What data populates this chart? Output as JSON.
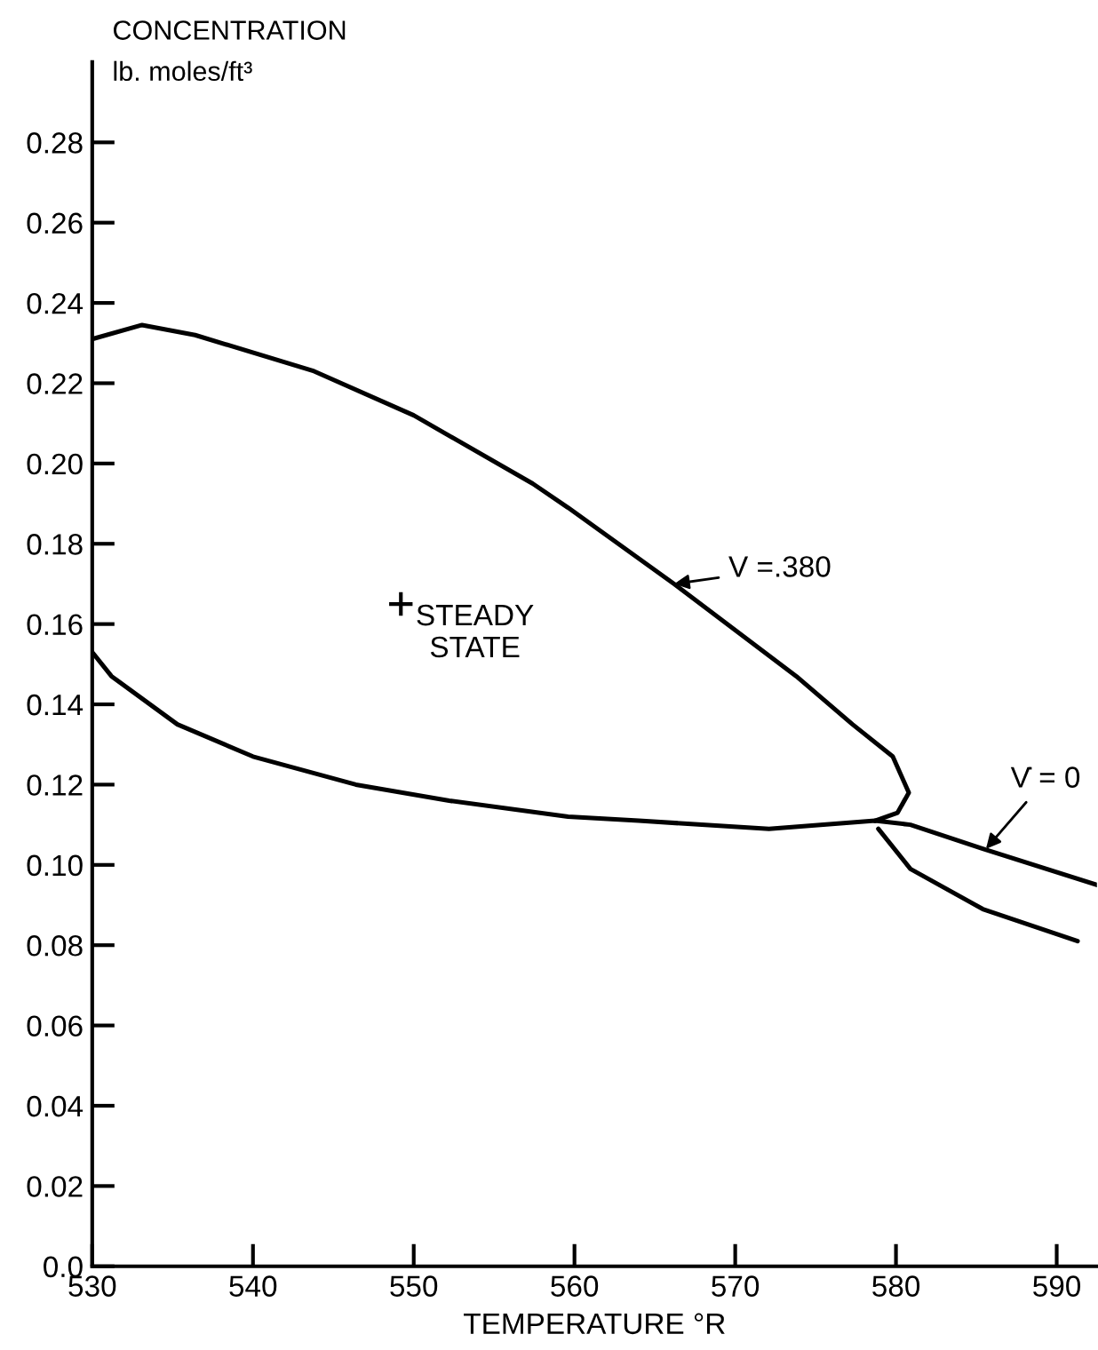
{
  "chart_data": {
    "type": "line",
    "xlabel": "TEMPERATURE °R",
    "ylabel": "CONCENTRATION\nlb. moles/ft³",
    "xlim": [
      530,
      592.5
    ],
    "ylim": [
      0,
      0.3
    ],
    "xticks": [
      530,
      540,
      550,
      560,
      570,
      580,
      590
    ],
    "yticks": [
      {
        "value": 0,
        "label": "0.0"
      },
      {
        "value": 0.02,
        "label": "0.02"
      },
      {
        "value": 0.04,
        "label": "0.04"
      },
      {
        "value": 0.06,
        "label": "0.06"
      },
      {
        "value": 0.08,
        "label": "0.08"
      },
      {
        "value": 0.1,
        "label": "0.10"
      },
      {
        "value": 0.12,
        "label": "0.12"
      },
      {
        "value": 0.14,
        "label": "0.14"
      },
      {
        "value": 0.16,
        "label": "0.16"
      },
      {
        "value": 0.18,
        "label": "0.18"
      },
      {
        "value": 0.2,
        "label": "0.20"
      },
      {
        "value": 0.22,
        "label": "0.22"
      },
      {
        "value": 0.24,
        "label": "0.24"
      },
      {
        "value": 0.26,
        "label": "0.26"
      },
      {
        "value": 0.28,
        "label": "0.28"
      }
    ],
    "grid": false,
    "legend": false,
    "line_style": "solid",
    "marker": "none",
    "series": [
      {
        "color": "#000000",
        "x": [
          530,
          533.1,
          536.4,
          543.8,
          550,
          557.4,
          559.6,
          566.2,
          573.8,
          577.3,
          579.8,
          580.8,
          580.1,
          578.7
        ],
        "values": [
          0.231,
          0.2345,
          0.232,
          0.223,
          0.212,
          0.195,
          0.189,
          0.17,
          0.147,
          0.135,
          0.127,
          0.118,
          0.113,
          0.111
        ]
      },
      {
        "color": "#000000",
        "x": [
          530,
          531.2,
          535.3,
          540,
          546.4,
          552.2,
          559.6,
          564,
          572.1,
          578.7,
          580.9,
          585.4,
          592.5
        ],
        "values": [
          0.153,
          0.147,
          0.135,
          0.127,
          0.12,
          0.116,
          0.112,
          0.111,
          0.109,
          0.111,
          0.11,
          0.104,
          0.095
        ]
      },
      {
        "color": "#000000",
        "x": [
          578.9,
          580.9,
          585.4,
          591.3
        ],
        "values": [
          0.109,
          0.099,
          0.089,
          0.081
        ]
      },
      {
        "type": "scatter",
        "marker": "cross",
        "color": "#000000",
        "x": [
          549.2
        ],
        "values": [
          0.165
        ]
      }
    ],
    "annotations": [
      {
        "text": "V =.380",
        "x": 566.2,
        "y": 0.17
      },
      {
        "text": "V̇ = 0",
        "x": 585.6,
        "y": 0.104
      },
      {
        "text": "STEADY\nSTATE",
        "x": 549.2,
        "y": 0.165
      }
    ]
  }
}
